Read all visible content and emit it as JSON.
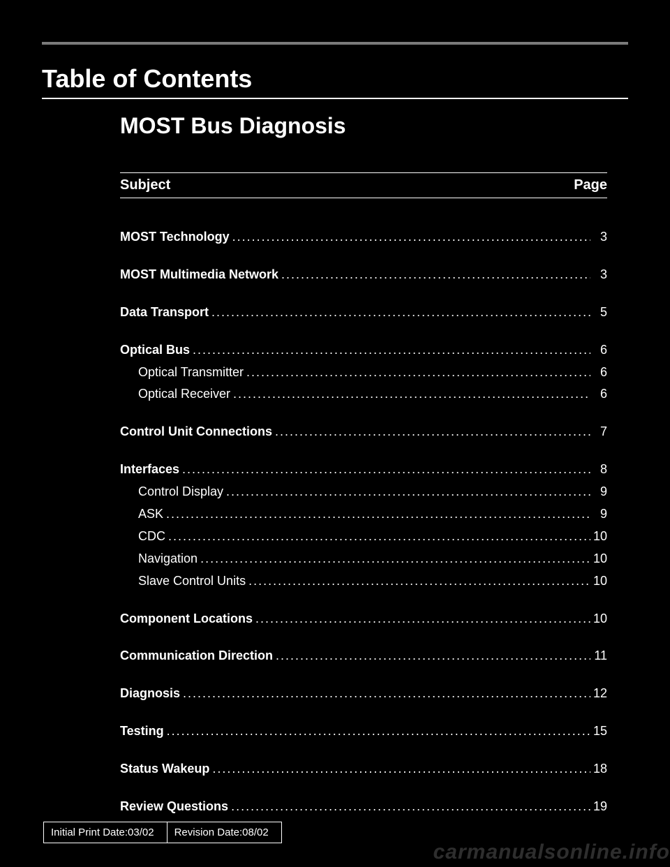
{
  "colors": {
    "page_bg": "#000000",
    "text": "#ffffff",
    "rule": "#7a7a7a"
  },
  "header": {
    "toc_label": "Table of Contents",
    "doc_title": "MOST Bus Diagnosis",
    "col_subject": "Subject",
    "col_page": "Page"
  },
  "toc": [
    {
      "label": "MOST Technology",
      "page": "3",
      "bold": true,
      "sub": false,
      "gap_after": true
    },
    {
      "label": "MOST Multimedia Network",
      "page": "3",
      "bold": true,
      "sub": false,
      "gap_after": true
    },
    {
      "label": "Data Transport",
      "page": "5",
      "bold": true,
      "sub": false,
      "gap_after": true
    },
    {
      "label": "Optical Bus",
      "page": "6",
      "bold": true,
      "sub": false,
      "gap_after": false
    },
    {
      "label": "Optical Transmitter",
      "page": "6",
      "bold": false,
      "sub": true,
      "gap_after": false
    },
    {
      "label": "Optical Receiver",
      "page": "6",
      "bold": false,
      "sub": true,
      "gap_after": true
    },
    {
      "label": "Control Unit Connections",
      "page": "7",
      "bold": true,
      "sub": false,
      "gap_after": true
    },
    {
      "label": "Interfaces",
      "page": "8",
      "bold": true,
      "sub": false,
      "gap_after": false
    },
    {
      "label": "Control Display",
      "page": "9",
      "bold": false,
      "sub": true,
      "gap_after": false
    },
    {
      "label": "ASK",
      "page": "9",
      "bold": false,
      "sub": true,
      "gap_after": false
    },
    {
      "label": "CDC",
      "page": "10",
      "bold": false,
      "sub": true,
      "gap_after": false
    },
    {
      "label": "Navigation",
      "page": "10",
      "bold": false,
      "sub": true,
      "gap_after": false
    },
    {
      "label": "Slave Control Units",
      "page": "10",
      "bold": false,
      "sub": true,
      "gap_after": true
    },
    {
      "label": "Component Locations",
      "page": "10",
      "bold": true,
      "sub": false,
      "gap_after": true
    },
    {
      "label": "Communication Direction",
      "page": "11",
      "bold": true,
      "sub": false,
      "gap_after": true
    },
    {
      "label": "Diagnosis",
      "page": "12",
      "bold": true,
      "sub": false,
      "gap_after": true
    },
    {
      "label": "Testing",
      "page": "15",
      "bold": true,
      "sub": false,
      "gap_after": true
    },
    {
      "label": "Status Wakeup",
      "page": "18",
      "bold": true,
      "sub": false,
      "gap_after": true
    },
    {
      "label": "Review Questions",
      "page": "19",
      "bold": true,
      "sub": false,
      "gap_after": false
    }
  ],
  "footer": {
    "initial": "Initial Print Date:03/02",
    "revision": "Revision Date:08/02"
  },
  "watermark": "carmanualsonline.info"
}
